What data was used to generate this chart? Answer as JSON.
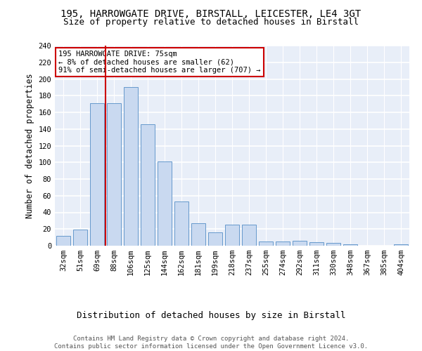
{
  "title1": "195, HARROWGATE DRIVE, BIRSTALL, LEICESTER, LE4 3GT",
  "title2": "Size of property relative to detached houses in Birstall",
  "xlabel": "Distribution of detached houses by size in Birstall",
  "ylabel": "Number of detached properties",
  "categories": [
    "32sqm",
    "51sqm",
    "69sqm",
    "88sqm",
    "106sqm",
    "125sqm",
    "144sqm",
    "162sqm",
    "181sqm",
    "199sqm",
    "218sqm",
    "237sqm",
    "255sqm",
    "274sqm",
    "292sqm",
    "311sqm",
    "330sqm",
    "348sqm",
    "367sqm",
    "385sqm",
    "404sqm"
  ],
  "values": [
    12,
    19,
    171,
    171,
    190,
    146,
    101,
    53,
    27,
    16,
    25,
    25,
    5,
    5,
    6,
    4,
    3,
    2,
    0,
    0,
    2
  ],
  "bar_color": "#c9d9f0",
  "bar_edge_color": "#6699cc",
  "property_line_color": "#cc0000",
  "annotation_text": "195 HARROWGATE DRIVE: 75sqm\n← 8% of detached houses are smaller (62)\n91% of semi-detached houses are larger (707) →",
  "annotation_box_color": "#ffffff",
  "annotation_box_edge": "#cc0000",
  "ylim": [
    0,
    240
  ],
  "yticks": [
    0,
    20,
    40,
    60,
    80,
    100,
    120,
    140,
    160,
    180,
    200,
    220,
    240
  ],
  "background_color": "#e8eef8",
  "grid_color": "#ffffff",
  "footnote": "Contains HM Land Registry data © Crown copyright and database right 2024.\nContains public sector information licensed under the Open Government Licence v3.0.",
  "title1_fontsize": 10,
  "title2_fontsize": 9,
  "xlabel_fontsize": 9,
  "ylabel_fontsize": 8.5,
  "tick_fontsize": 7.5,
  "footnote_fontsize": 6.5,
  "annot_fontsize": 7.5
}
